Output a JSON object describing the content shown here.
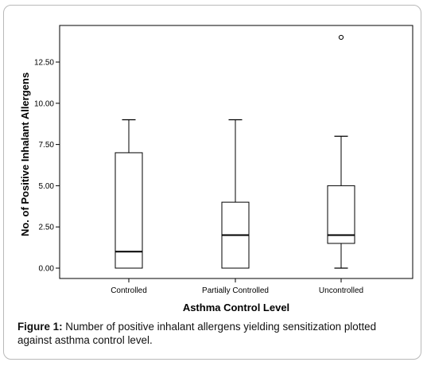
{
  "chart_data": {
    "type": "boxplot",
    "title": "",
    "xlabel": "Asthma Control Level",
    "ylabel": "No. of Positive Inhalant Allergens",
    "ylim": [
      0,
      14.5
    ],
    "yticks": [
      "0.00",
      "2.50",
      "5.00",
      "7.50",
      "10.00",
      "12.50"
    ],
    "ytick_values": [
      0,
      2.5,
      5,
      7.5,
      10,
      12.5
    ],
    "categories": [
      "Controlled",
      "Partially Controlled",
      "Uncontrolled"
    ],
    "boxes": [
      {
        "category": "Controlled",
        "whisker_low": 0,
        "q1": 0,
        "median": 1,
        "q3": 7,
        "whisker_high": 9,
        "outliers": []
      },
      {
        "category": "Partially Controlled",
        "whisker_low": 0,
        "q1": 0,
        "median": 2,
        "q3": 4,
        "whisker_high": 9,
        "outliers": []
      },
      {
        "category": "Uncontrolled",
        "whisker_low": 0,
        "q1": 1.5,
        "median": 2,
        "q3": 5,
        "whisker_high": 8,
        "outliers": [
          14
        ]
      }
    ],
    "grid": false,
    "legend": "none"
  },
  "caption": {
    "label": "Figure 1:",
    "text": " Number of positive inhalant allergens yielding sensitization plotted against asthma control level."
  },
  "colors": {
    "box_stroke": "#000000",
    "axis": "#000000",
    "frame": "#b9b9b9"
  }
}
